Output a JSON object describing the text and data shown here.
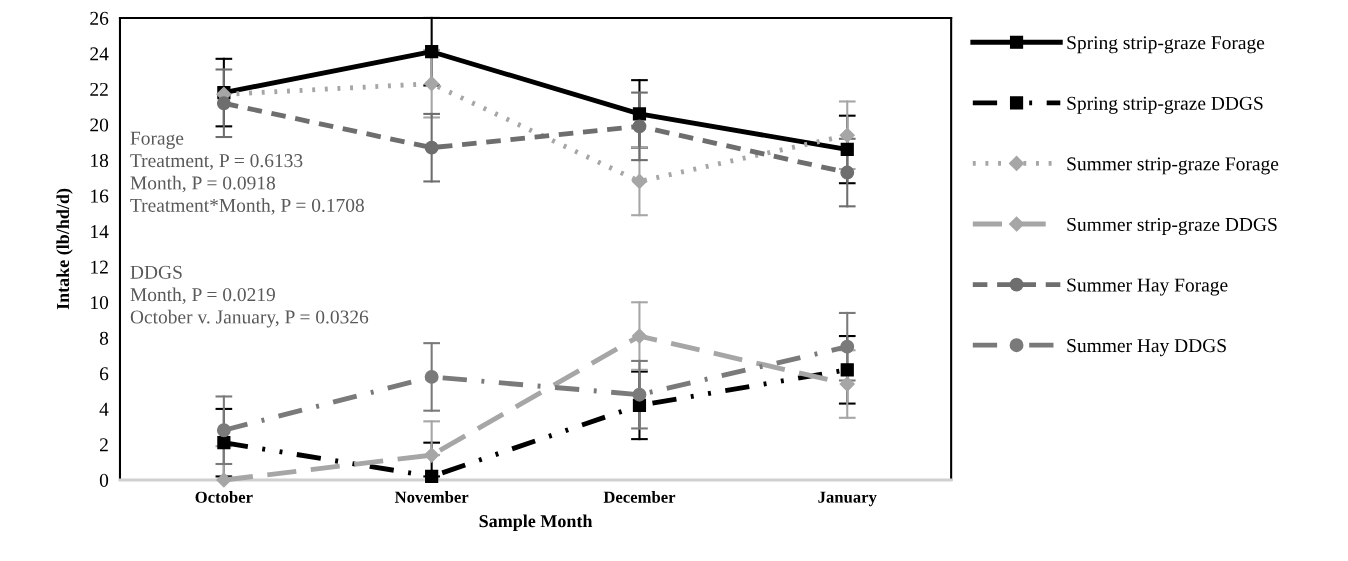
{
  "chart_data": {
    "type": "line",
    "xlabel": "Sample Month",
    "ylabel": "Intake (lb/hd/d)",
    "categories": [
      "October",
      "November",
      "December",
      "January"
    ],
    "ylim": [
      0,
      26
    ],
    "yticks": [
      0,
      2,
      4,
      6,
      8,
      10,
      12,
      14,
      16,
      18,
      20,
      22,
      24,
      26
    ],
    "grid": false,
    "legend": "right",
    "annotations": [
      "Forage\nTreatment, P = 0.6133\nMonth, P = 0.0918\nTreatment*Month, P = 0.1708",
      "DDGS\nMonth, P = 0.0219\nOctober v. January, P = 0.0326"
    ],
    "series": [
      {
        "name": "Spring strip-graze Forage",
        "color": "#000000",
        "marker": "square",
        "line_style": "solid",
        "values": [
          21.8,
          24.1,
          20.6,
          18.6
        ],
        "errors": [
          1.9,
          1.9,
          1.9,
          1.9
        ]
      },
      {
        "name": "Spring strip-graze DDGS",
        "color": "#000000",
        "marker": "square",
        "line_style": "dashdotdot",
        "values": [
          2.1,
          0.2,
          4.2,
          6.2
        ],
        "errors": [
          1.9,
          [
            0.2,
            2.1
          ],
          1.9,
          1.9
        ]
      },
      {
        "name": "Summer strip-graze Forage",
        "color": "#a6a6a6",
        "marker": "diamond",
        "line_style": "dotted",
        "values": [
          21.7,
          22.3,
          16.8,
          19.4
        ],
        "errors": [
          null,
          1.9,
          1.9,
          1.9
        ]
      },
      {
        "name": "Summer strip-graze DDGS",
        "color": "#a6a6a6",
        "marker": "diamond",
        "line_style": "longdash",
        "values": [
          0,
          1.4,
          8.1,
          5.4
        ],
        "errors": [
          [
            0,
            1.9
          ],
          [
            1.4,
            3.3
          ],
          1.9,
          1.9
        ]
      },
      {
        "name": "Summer Hay Forage",
        "color": "#6e6e6e",
        "marker": "circle",
        "line_style": "dashed",
        "values": [
          21.2,
          18.7,
          19.9,
          17.3
        ],
        "errors": [
          1.9,
          1.9,
          1.9,
          1.9
        ]
      },
      {
        "name": "Summer Hay DDGS",
        "color": "#7a7a7a",
        "marker": "circle",
        "line_style": "dashdot",
        "values": [
          2.8,
          5.8,
          4.8,
          7.5
        ],
        "errors": [
          1.9,
          1.9,
          1.9,
          1.9
        ]
      }
    ]
  }
}
